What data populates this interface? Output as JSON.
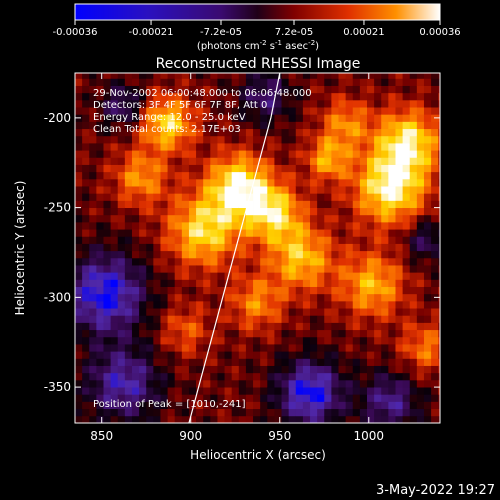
{
  "colorbar": {
    "tick_labels": [
      "-0.00036",
      "-0.00021",
      "-7.2e-05",
      "7.2e-05",
      "0.00021",
      "0.00036"
    ],
    "tick_values": [
      -0.00036,
      -0.00021,
      -7.2e-05,
      7.2e-05,
      0.00021,
      0.00036
    ],
    "range": [
      -0.00036,
      0.00036
    ],
    "units_prefix": "(photons cm",
    "units_exp1": "-2",
    "units_mid": " s",
    "units_exp2": "-1",
    "units_suffix": " asec",
    "units_exp3": "-2",
    "units_close": ")"
  },
  "chart_data": {
    "type": "heatmap",
    "title": "Reconstructed RHESSI Image",
    "xlabel": "Heliocentric X (arcsec)",
    "ylabel": "Heliocentric Y (arcsec)",
    "xlim": [
      835,
      1040
    ],
    "ylim": [
      -370,
      -175
    ],
    "x_ticks": [
      850,
      900,
      950,
      1000
    ],
    "x_tick_labels": [
      "850",
      "900",
      "950",
      "1000"
    ],
    "y_ticks": [
      -200,
      -250,
      -300,
      -350
    ],
    "y_tick_labels": [
      "-200",
      "-250",
      "-300",
      "-350"
    ],
    "annotations": [
      "29-Nov-2002 06:00:48.000 to 06:06:48.000",
      "Detectors: 3F 4F 5F 6F 7F 8F, Att 0",
      "Energy Range: 12.0 - 25.0 keV",
      "Clean     Total counts: 2.17E+03"
    ],
    "peak_label": "Position of Peak = [1010,-241]",
    "peak": [
      1010,
      -241
    ],
    "limb_line": [
      [
        899,
        -370
      ],
      [
        945,
        -200
      ],
      [
        950,
        -175
      ]
    ],
    "colormap": [
      "#0000ff",
      "#5a2ca0",
      "#3a0a55",
      "#000000",
      "#7a0000",
      "#e03000",
      "#ff8000",
      "#ffd000",
      "#ffffff"
    ]
  },
  "footer": {
    "timestamp": "3-May-2022 19:27"
  }
}
